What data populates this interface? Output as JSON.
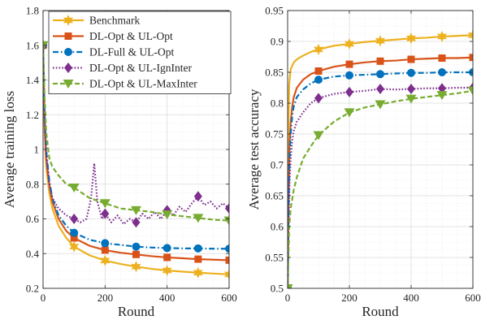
{
  "chart_data": [
    {
      "type": "line",
      "xlabel": "Round",
      "ylabel": "Average training loss",
      "xlim": [
        0,
        600
      ],
      "ylim": [
        0.2,
        1.8
      ],
      "xticks": [
        0,
        200,
        400,
        600
      ],
      "yticks": [
        0.2,
        0.4,
        0.6,
        0.8,
        1,
        1.2,
        1.4,
        1.6,
        1.8
      ],
      "grid": true,
      "legend_position": "top-right",
      "series": [
        {
          "name": "Benchmark",
          "color": "#EDB120",
          "style": "solid",
          "marker": "hexagram",
          "x": [
            0,
            5,
            10,
            20,
            30,
            50,
            75,
            100,
            150,
            200,
            250,
            300,
            350,
            400,
            450,
            500,
            550,
            600
          ],
          "y": [
            1.6,
            1.1,
            0.9,
            0.75,
            0.66,
            0.56,
            0.49,
            0.44,
            0.39,
            0.36,
            0.34,
            0.325,
            0.312,
            0.303,
            0.296,
            0.29,
            0.285,
            0.28
          ]
        },
        {
          "name": "DL-Opt & UL-Opt",
          "color": "#D95319",
          "style": "solid",
          "marker": "square",
          "x": [
            0,
            5,
            10,
            20,
            30,
            50,
            75,
            100,
            150,
            200,
            250,
            300,
            350,
            400,
            450,
            500,
            550,
            600
          ],
          "y": [
            1.6,
            1.15,
            0.95,
            0.8,
            0.7,
            0.6,
            0.53,
            0.49,
            0.445,
            0.42,
            0.405,
            0.395,
            0.385,
            0.378,
            0.373,
            0.368,
            0.365,
            0.362
          ]
        },
        {
          "name": "DL-Full & UL-Opt",
          "color": "#0072BD",
          "style": "dashdot",
          "marker": "circle",
          "x": [
            0,
            5,
            10,
            20,
            30,
            50,
            75,
            100,
            150,
            200,
            250,
            300,
            350,
            400,
            450,
            500,
            550,
            600
          ],
          "y": [
            1.6,
            1.2,
            1.0,
            0.82,
            0.72,
            0.62,
            0.56,
            0.52,
            0.48,
            0.46,
            0.45,
            0.44,
            0.435,
            0.432,
            0.43,
            0.43,
            0.428,
            0.428
          ]
        },
        {
          "name": "DL-Opt & UL-IgnInter",
          "color": "#7E2F8E",
          "style": "dotted",
          "marker": "diamond",
          "x": [
            0,
            5,
            10,
            20,
            30,
            50,
            75,
            100,
            120,
            140,
            155,
            165,
            175,
            190,
            200,
            220,
            240,
            260,
            280,
            300,
            320,
            340,
            360,
            380,
            400,
            420,
            440,
            460,
            480,
            500,
            520,
            540,
            560,
            580,
            600
          ],
          "y": [
            1.6,
            1.2,
            0.98,
            0.8,
            0.72,
            0.66,
            0.62,
            0.6,
            0.58,
            0.6,
            0.72,
            0.92,
            0.7,
            0.6,
            0.63,
            0.58,
            0.62,
            0.57,
            0.6,
            0.58,
            0.63,
            0.6,
            0.64,
            0.6,
            0.65,
            0.62,
            0.67,
            0.64,
            0.69,
            0.73,
            0.68,
            0.7,
            0.66,
            0.69,
            0.66
          ]
        },
        {
          "name": "DL-Opt & UL-MaxInter",
          "color": "#77AC30",
          "style": "dashed",
          "marker": "triangle-down",
          "x": [
            0,
            5,
            10,
            20,
            30,
            50,
            75,
            100,
            150,
            200,
            250,
            300,
            350,
            400,
            450,
            500,
            550,
            600
          ],
          "y": [
            1.6,
            1.3,
            1.1,
            0.95,
            0.9,
            0.85,
            0.8,
            0.78,
            0.72,
            0.69,
            0.66,
            0.65,
            0.64,
            0.625,
            0.615,
            0.605,
            0.595,
            0.59
          ]
        }
      ]
    },
    {
      "type": "line",
      "xlabel": "Round",
      "ylabel": "Average test accuracy",
      "xlim": [
        0,
        600
      ],
      "ylim": [
        0.5,
        0.95
      ],
      "xticks": [
        0,
        200,
        400,
        600
      ],
      "yticks": [
        0.5,
        0.55,
        0.6,
        0.65,
        0.7,
        0.75,
        0.8,
        0.85,
        0.9,
        0.95
      ],
      "grid": true,
      "series": [
        {
          "name": "Benchmark",
          "color": "#EDB120",
          "style": "solid",
          "marker": "hexagram",
          "x": [
            0,
            2,
            5,
            10,
            20,
            30,
            50,
            75,
            100,
            150,
            200,
            250,
            300,
            350,
            400,
            450,
            500,
            550,
            600
          ],
          "y": [
            0.5,
            0.75,
            0.83,
            0.855,
            0.866,
            0.871,
            0.877,
            0.883,
            0.887,
            0.893,
            0.896,
            0.899,
            0.901,
            0.903,
            0.905,
            0.906,
            0.908,
            0.909,
            0.91
          ]
        },
        {
          "name": "DL-Opt & UL-Opt",
          "color": "#D95319",
          "style": "solid",
          "marker": "square",
          "x": [
            0,
            3,
            6,
            10,
            15,
            20,
            30,
            50,
            75,
            100,
            150,
            200,
            250,
            300,
            350,
            400,
            450,
            500,
            550,
            600
          ],
          "y": [
            0.5,
            0.65,
            0.73,
            0.77,
            0.795,
            0.81,
            0.825,
            0.838,
            0.847,
            0.852,
            0.859,
            0.863,
            0.866,
            0.868,
            0.869,
            0.871,
            0.872,
            0.873,
            0.873,
            0.874
          ]
        },
        {
          "name": "DL-Full & UL-Opt",
          "color": "#0072BD",
          "style": "dashdot",
          "marker": "circle",
          "x": [
            0,
            3,
            6,
            10,
            15,
            20,
            30,
            50,
            75,
            100,
            150,
            200,
            250,
            300,
            350,
            400,
            450,
            500,
            550,
            600
          ],
          "y": [
            0.5,
            0.63,
            0.71,
            0.75,
            0.78,
            0.795,
            0.81,
            0.822,
            0.832,
            0.838,
            0.843,
            0.845,
            0.846,
            0.847,
            0.848,
            0.849,
            0.849,
            0.85,
            0.85,
            0.85
          ]
        },
        {
          "name": "DL-Opt & UL-IgnInter",
          "color": "#7E2F8E",
          "style": "dotted",
          "marker": "diamond",
          "x": [
            0,
            3,
            6,
            10,
            15,
            20,
            30,
            50,
            75,
            100,
            150,
            200,
            250,
            300,
            350,
            400,
            450,
            500,
            550,
            600
          ],
          "y": [
            0.5,
            0.6,
            0.67,
            0.71,
            0.74,
            0.755,
            0.77,
            0.785,
            0.8,
            0.808,
            0.815,
            0.818,
            0.82,
            0.823,
            0.822,
            0.823,
            0.824,
            0.824,
            0.825,
            0.825
          ]
        },
        {
          "name": "DL-Opt & UL-MaxInter",
          "color": "#77AC30",
          "style": "dashed",
          "marker": "triangle-down",
          "x": [
            0,
            5,
            10,
            20,
            30,
            50,
            75,
            100,
            150,
            200,
            250,
            300,
            350,
            400,
            450,
            500,
            550,
            600
          ],
          "y": [
            0.5,
            0.6,
            0.63,
            0.66,
            0.68,
            0.71,
            0.73,
            0.748,
            0.77,
            0.785,
            0.793,
            0.798,
            0.803,
            0.807,
            0.81,
            0.813,
            0.816,
            0.82
          ]
        }
      ]
    }
  ]
}
